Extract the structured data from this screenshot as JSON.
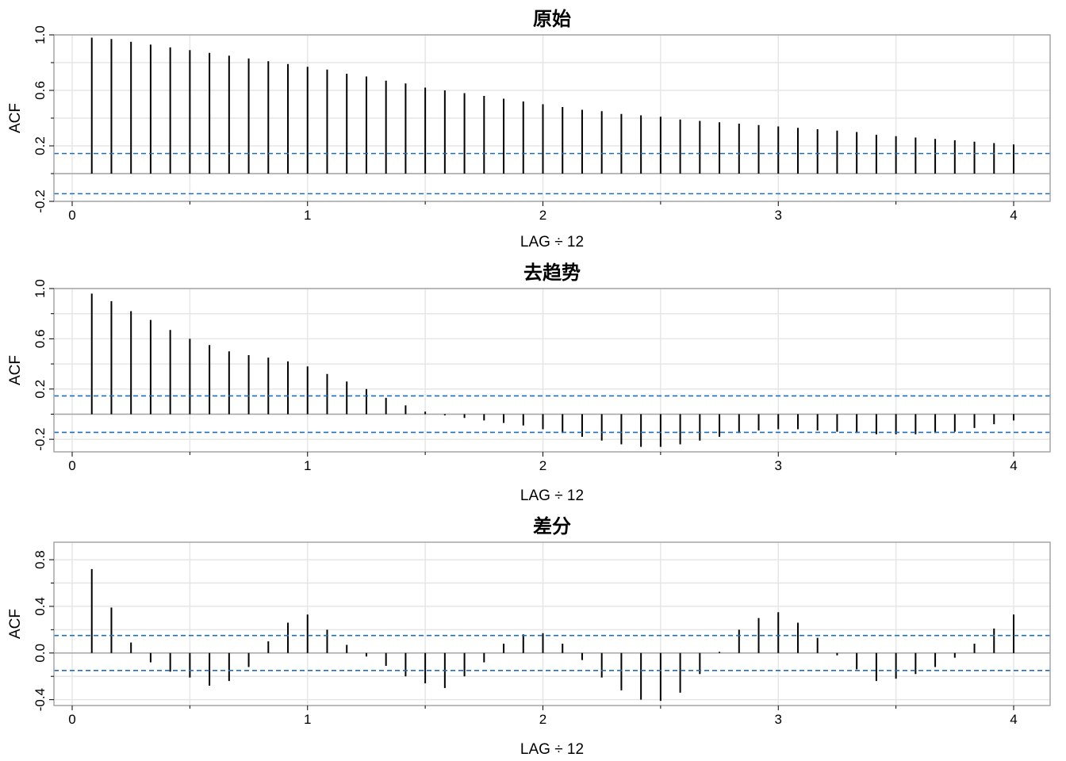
{
  "chart_data": [
    {
      "type": "bar",
      "title": "原始",
      "xlabel": "LAG ÷ 12",
      "ylabel": "ACF",
      "xlim": [
        0,
        4
      ],
      "ylim": [
        -0.2,
        1.0
      ],
      "x_ticks": [
        "0",
        "1",
        "2",
        "3",
        "4"
      ],
      "y_ticks": [
        "-0.2",
        "0.2",
        "0.6",
        "1.0"
      ],
      "ci": 0.145,
      "grid": true,
      "lags": [
        1,
        2,
        3,
        4,
        5,
        6,
        7,
        8,
        9,
        10,
        11,
        12,
        13,
        14,
        15,
        16,
        17,
        18,
        19,
        20,
        21,
        22,
        23,
        24,
        25,
        26,
        27,
        28,
        29,
        30,
        31,
        32,
        33,
        34,
        35,
        36,
        37,
        38,
        39,
        40,
        41,
        42,
        43,
        44,
        45,
        46,
        47,
        48
      ],
      "values": [
        0.98,
        0.97,
        0.95,
        0.93,
        0.91,
        0.89,
        0.87,
        0.85,
        0.83,
        0.81,
        0.79,
        0.77,
        0.75,
        0.72,
        0.7,
        0.67,
        0.65,
        0.62,
        0.6,
        0.58,
        0.56,
        0.54,
        0.52,
        0.5,
        0.48,
        0.46,
        0.45,
        0.43,
        0.42,
        0.41,
        0.39,
        0.38,
        0.37,
        0.36,
        0.35,
        0.34,
        0.33,
        0.32,
        0.31,
        0.3,
        0.28,
        0.27,
        0.26,
        0.25,
        0.24,
        0.23,
        0.22,
        0.21
      ]
    },
    {
      "type": "bar",
      "title": "去趋势",
      "xlabel": "LAG ÷ 12",
      "ylabel": "ACF",
      "xlim": [
        0,
        4
      ],
      "ylim": [
        -0.3,
        1.0
      ],
      "x_ticks": [
        "0",
        "1",
        "2",
        "3",
        "4"
      ],
      "y_ticks": [
        "-0.2",
        "0.2",
        "0.6",
        "1.0"
      ],
      "ci": 0.145,
      "grid": true,
      "lags": [
        1,
        2,
        3,
        4,
        5,
        6,
        7,
        8,
        9,
        10,
        11,
        12,
        13,
        14,
        15,
        16,
        17,
        18,
        19,
        20,
        21,
        22,
        23,
        24,
        25,
        26,
        27,
        28,
        29,
        30,
        31,
        32,
        33,
        34,
        35,
        36,
        37,
        38,
        39,
        40,
        41,
        42,
        43,
        44,
        45,
        46,
        47,
        48
      ],
      "values": [
        0.96,
        0.9,
        0.82,
        0.75,
        0.67,
        0.6,
        0.55,
        0.5,
        0.47,
        0.45,
        0.42,
        0.38,
        0.32,
        0.26,
        0.2,
        0.13,
        0.07,
        0.02,
        -0.01,
        -0.03,
        -0.05,
        -0.07,
        -0.09,
        -0.12,
        -0.15,
        -0.18,
        -0.21,
        -0.24,
        -0.26,
        -0.26,
        -0.24,
        -0.21,
        -0.18,
        -0.15,
        -0.13,
        -0.12,
        -0.12,
        -0.13,
        -0.14,
        -0.15,
        -0.16,
        -0.16,
        -0.16,
        -0.15,
        -0.14,
        -0.11,
        -0.08,
        -0.05
      ]
    },
    {
      "type": "bar",
      "title": "差分",
      "xlabel": "LAG ÷ 12",
      "ylabel": "ACF",
      "xlim": [
        0,
        4
      ],
      "ylim": [
        -0.45,
        0.95
      ],
      "x_ticks": [
        "0",
        "1",
        "2",
        "3",
        "4"
      ],
      "y_ticks": [
        "-0.4",
        "0.0",
        "0.4",
        "0.8"
      ],
      "ci": 0.15,
      "grid": true,
      "lags": [
        1,
        2,
        3,
        4,
        5,
        6,
        7,
        8,
        9,
        10,
        11,
        12,
        13,
        14,
        15,
        16,
        17,
        18,
        19,
        20,
        21,
        22,
        23,
        24,
        25,
        26,
        27,
        28,
        29,
        30,
        31,
        32,
        33,
        34,
        35,
        36,
        37,
        38,
        39,
        40,
        41,
        42,
        43,
        44,
        45,
        46,
        47,
        48
      ],
      "values": [
        0.72,
        0.39,
        0.09,
        -0.08,
        -0.16,
        -0.21,
        -0.28,
        -0.24,
        -0.12,
        0.1,
        0.26,
        0.33,
        0.2,
        0.07,
        -0.03,
        -0.11,
        -0.2,
        -0.26,
        -0.3,
        -0.2,
        -0.08,
        0.08,
        0.16,
        0.17,
        0.08,
        -0.06,
        -0.21,
        -0.32,
        -0.4,
        -0.41,
        -0.34,
        -0.18,
        0.01,
        0.2,
        0.3,
        0.35,
        0.26,
        0.13,
        -0.02,
        -0.14,
        -0.24,
        -0.22,
        -0.18,
        -0.12,
        -0.04,
        0.08,
        0.21,
        0.33
      ]
    }
  ],
  "colors": {
    "ci": "#1f6fbf",
    "bar": "#000000",
    "grid": "#e6e6e6",
    "frame": "#a6a6a6"
  }
}
